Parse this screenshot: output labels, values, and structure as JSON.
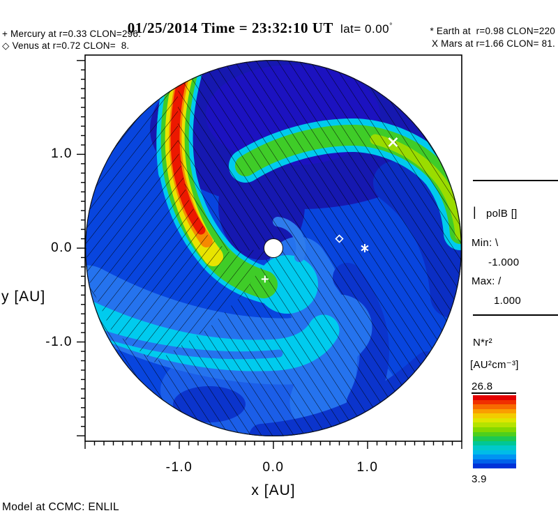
{
  "title": {
    "datetime": "01/25/2014 Time = 23:32:10 UT",
    "lat": "lat= 0.00",
    "degree": "°"
  },
  "legend": {
    "left": [
      "+ Mercury at r=0.33 CLON=296.",
      "◇ Venus at r=0.72 CLON=  8."
    ],
    "right": [
      "* Earth at  r=0.98 CLON=220",
      "X Mars at r=1.66 CLON= 81."
    ]
  },
  "axes": {
    "x_label": "x [AU]",
    "y_label": "y [AU]",
    "x_tick_labels": [
      "-1.0",
      "0.0",
      "1.0"
    ],
    "y_tick_labels": [
      "1.0",
      "0.0",
      "-1.0"
    ]
  },
  "polb_panel": {
    "symbol": "|",
    "title": "polB []",
    "min_label": "Min: \\",
    "min_value": "-1.000",
    "max_label": "Max: /",
    "max_value": "1.000"
  },
  "colorbar": {
    "quantity": "N*r²",
    "units": "[AU²cm⁻³]",
    "max": "26.8",
    "min": "3.9",
    "colors": [
      "#e30000",
      "#f03000",
      "#f76b00",
      "#fa9e00",
      "#f2cc00",
      "#dfe600",
      "#b5e300",
      "#83d800",
      "#4ecf1c",
      "#1cc952",
      "#00c795",
      "#00c9c9",
      "#00bce8",
      "#0093f2",
      "#0061ea",
      "#0032d8"
    ]
  },
  "footer": "Model at CCMC: ENLIL",
  "chart_data": {
    "type": "heatmap",
    "projection": "polar disk, ecliptic-plane slice",
    "model": "ENLIL",
    "site": "CCMC",
    "datetime": "01/25/2014 23:32:10 UT",
    "latitude_deg": 0.0,
    "quantity": {
      "name": "N*r²",
      "units": "AU²cm⁻³",
      "min": 3.9,
      "max": 26.8
    },
    "overlay": {
      "name": "polB",
      "units": "[]",
      "min": -1.0,
      "max": 1.0,
      "min_hatch": "\\",
      "max_hatch": "/"
    },
    "axes": {
      "x": {
        "label": "x [AU]",
        "range": [
          -2.0,
          2.0
        ],
        "major_ticks": [
          -1.0,
          0.0,
          1.0
        ],
        "minor_tick_step_au": 0.1
      },
      "y": {
        "label": "y [AU]",
        "range": [
          -2.06,
          2.06
        ],
        "major_ticks": [
          -1.0,
          0.0,
          1.0
        ],
        "minor_tick_step_au": 0.1
      }
    },
    "disk_radius_au": 2.0,
    "planets": [
      {
        "name": "Mercury",
        "marker": "+",
        "r_au": 0.33,
        "clon_deg": 296,
        "plot_x_au": -0.09,
        "plot_y_au": -0.33
      },
      {
        "name": "Venus",
        "marker": "◇",
        "r_au": 0.72,
        "clon_deg": 8,
        "plot_x_au": 0.7,
        "plot_y_au": 0.1
      },
      {
        "name": "Earth",
        "marker": "*",
        "r_au": 0.98,
        "clon_deg": 220,
        "plot_x_au": 0.97,
        "plot_y_au": 0.0
      },
      {
        "name": "Mars",
        "marker": "X",
        "r_au": 1.66,
        "clon_deg": 81,
        "plot_x_au": 1.27,
        "plot_y_au": 1.13
      }
    ],
    "features": [
      {
        "name": "high-density CIR spiral arm",
        "peak_color": "#ec1800",
        "location": "upper-left, spiraling clockwise into center"
      },
      {
        "name": "moderate-density spiral arm",
        "peak_color": "#9adc00",
        "location": "upper-right through Mars toward east limb"
      },
      {
        "name": "low-density rarefaction",
        "color": "#1c12c0",
        "location": "top-center sector"
      },
      {
        "name": "hatching",
        "meaning": "magnetic field polarity polB, \\ = -1, / = +1"
      }
    ],
    "palette": {
      "background_blue": "#0845de",
      "cyan_band": "#00cbee",
      "dark_navy": "#1618b0"
    }
  }
}
